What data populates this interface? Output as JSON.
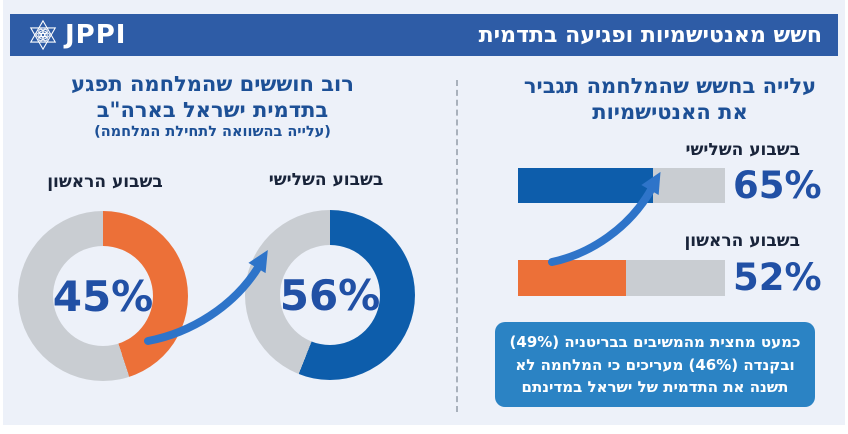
{
  "header": {
    "title": "חשש מאנטישמיות ופגיעה בתדמית",
    "logo_text": "JPPI"
  },
  "left_panel": {
    "title": "רוב חוששים שהמלחמה תפגע\nבתדמית ישראל בארה\"ב",
    "subtitle": "(עלייה בהשוואה לתחילת המלחמה)",
    "donuts": [
      {
        "label": "בשבוע הראשון",
        "value": "45%",
        "pct": 45,
        "color": "#ec7038"
      },
      {
        "label": "בשבוע השלישי",
        "value": "56%",
        "pct": 56,
        "color": "#0d5dab"
      }
    ]
  },
  "right_panel": {
    "title": "עלייה בחשש שהמלחמה תגביר\nאת האנטישמיות",
    "bars": [
      {
        "label": "בשבוע השלישי",
        "value": "65%",
        "pct": 65,
        "color": "#0d5dab"
      },
      {
        "label": "בשבוע הראשון",
        "value": "52%",
        "pct": 52,
        "color": "#ec7038"
      }
    ],
    "note": "כמעט מחצית מהמשיבים בבריטניה (49%)\nובקנדה (46%) מעריכים כי המלחמה לא\nתשנה את התדמית של ישראל במדינתם"
  },
  "colors": {
    "accent_blue": "#0d5dab",
    "accent_orange": "#ec7038",
    "track_gray": "#c9cdd2",
    "header_bg": "#2e5ca6",
    "title_text": "#1d5096",
    "value_text": "#2150a5",
    "note_bg": "#2b83c4",
    "background": "#edf1f9"
  },
  "chart_data": [
    {
      "type": "pie",
      "subtype": "donut-pair",
      "title": "רוב חוששים שהמלחמה תפגע בתדמית ישראל בארה\"ב",
      "subtitle": "(עלייה בהשוואה לתחילת המלחמה)",
      "categories": [
        "בשבוע הראשון",
        "בשבוע השלישי"
      ],
      "values": [
        45,
        56
      ],
      "colors": [
        "#ec7038",
        "#0d5dab"
      ],
      "start_angle": "top",
      "direction": "clockwise",
      "labels_position": "above",
      "value_labels": [
        "45%",
        "56%"
      ]
    },
    {
      "type": "bar",
      "orientation": "horizontal",
      "title": "עלייה בחשש שהמלחמה תגביר את האנטישמיות",
      "categories": [
        "בשבוע השלישי",
        "בשבוע הראשון"
      ],
      "values": [
        65,
        52
      ],
      "colors": [
        "#0d5dab",
        "#ec7038"
      ],
      "xlim": [
        0,
        100
      ],
      "grid": false,
      "value_labels": [
        "65%",
        "52%"
      ],
      "annotation": "כמעט מחצית מהמשיבים בבריטניה (49%) ובקנדה (46%) מעריכים כי המלחמה לא תשנה את התדמית של ישראל במדינתם"
    }
  ]
}
